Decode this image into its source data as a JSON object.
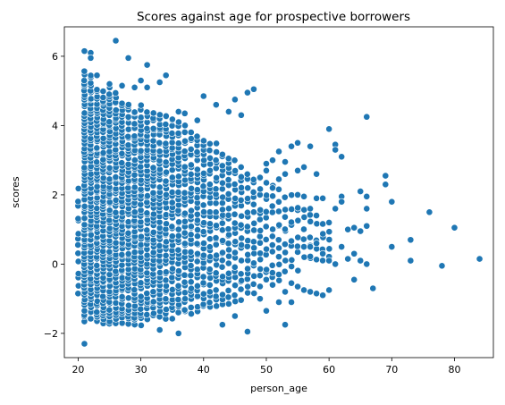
{
  "chart_data": {
    "type": "scatter",
    "title": "Scores against age for prospective borrowers",
    "xlabel": "person_age",
    "ylabel": "scores",
    "xlim": [
      17.8,
      86.2
    ],
    "ylim": [
      -2.7,
      6.85
    ],
    "xticks": [
      20,
      30,
      40,
      50,
      60,
      70,
      80
    ],
    "yticks": [
      -2,
      0,
      2,
      4,
      6
    ],
    "grid": false,
    "legend": "none",
    "color": "#1f77b4",
    "dense_band": {
      "description": "dense mass of points: per-age score range",
      "ages": [
        20,
        21,
        22,
        23,
        24,
        25,
        26,
        27,
        28,
        29,
        30,
        31,
        32,
        33,
        34,
        35,
        36,
        37,
        38,
        39,
        40,
        41,
        42,
        43,
        44,
        45,
        46,
        47,
        48,
        49,
        50,
        51,
        52,
        53,
        54,
        55,
        56,
        57,
        58,
        59,
        60
      ],
      "ymin": [
        -1.0,
        -1.7,
        -1.6,
        -1.7,
        -1.8,
        -1.8,
        -1.8,
        -1.75,
        -1.8,
        -1.8,
        -1.8,
        -1.6,
        -1.6,
        -1.6,
        -1.6,
        -1.6,
        -1.5,
        -1.5,
        -1.45,
        -1.4,
        -1.35,
        -1.3,
        -1.3,
        -1.25,
        -1.2,
        -1.1,
        -1.1,
        -1.0,
        -0.9,
        -0.8,
        -0.7,
        -0.6,
        -0.5,
        -0.4,
        -0.3,
        -0.2,
        -0.1,
        -0.1,
        0.0,
        0.0,
        0.1
      ],
      "ymax": [
        2.2,
        5.6,
        5.5,
        5.1,
        5.0,
        5.1,
        5.0,
        4.7,
        4.7,
        4.5,
        4.6,
        4.5,
        4.4,
        4.4,
        4.4,
        4.3,
        4.2,
        4.1,
        3.9,
        3.8,
        3.7,
        3.6,
        3.5,
        3.3,
        3.2,
        3.0,
        2.9,
        2.7,
        2.6,
        2.5,
        2.4,
        2.3,
        2.2,
        2.1,
        2.0,
        1.9,
        1.8,
        1.6,
        1.5,
        1.3,
        1.2
      ],
      "counts": [
        14,
        70,
        68,
        66,
        64,
        62,
        60,
        58,
        56,
        54,
        52,
        50,
        48,
        46,
        44,
        42,
        40,
        38,
        36,
        34,
        32,
        30,
        28,
        26,
        24,
        22,
        20,
        18,
        16,
        14,
        12,
        11,
        10,
        9,
        8,
        7,
        6,
        6,
        5,
        5,
        4
      ]
    },
    "points": [
      [
        21,
        6.15
      ],
      [
        22,
        6.1
      ],
      [
        26,
        6.45
      ],
      [
        28,
        5.95
      ],
      [
        31,
        5.75
      ],
      [
        34,
        5.45
      ],
      [
        22,
        5.95
      ],
      [
        23,
        5.45
      ],
      [
        25,
        5.2
      ],
      [
        27,
        5.15
      ],
      [
        29,
        5.1
      ],
      [
        30,
        5.3
      ],
      [
        33,
        5.25
      ],
      [
        31,
        5.1
      ],
      [
        40,
        4.85
      ],
      [
        42,
        4.6
      ],
      [
        45,
        4.75
      ],
      [
        47,
        4.95
      ],
      [
        48,
        5.05
      ],
      [
        44,
        4.4
      ],
      [
        46,
        4.3
      ],
      [
        36,
        4.4
      ],
      [
        37,
        4.35
      ],
      [
        39,
        4.15
      ],
      [
        21,
        -2.3
      ],
      [
        36,
        -2.0
      ],
      [
        47,
        -1.95
      ],
      [
        33,
        -1.9
      ],
      [
        43,
        -1.75
      ],
      [
        45,
        -1.5
      ],
      [
        50,
        -1.35
      ],
      [
        52,
        -1.1
      ],
      [
        53,
        -1.75
      ],
      [
        49,
        -1.0
      ],
      [
        54,
        -1.1
      ],
      [
        49,
        2.5
      ],
      [
        50,
        2.9
      ],
      [
        51,
        3.0
      ],
      [
        52,
        3.25
      ],
      [
        53,
        2.95
      ],
      [
        54,
        3.4
      ],
      [
        55,
        3.5
      ],
      [
        56,
        2.8
      ],
      [
        57,
        3.4
      ],
      [
        60,
        3.9
      ],
      [
        61,
        3.45
      ],
      [
        61,
        3.3
      ],
      [
        62,
        3.1
      ],
      [
        66,
        4.25
      ],
      [
        50,
        2.7
      ],
      [
        53,
        2.6
      ],
      [
        55,
        2.7
      ],
      [
        52,
        2.45
      ],
      [
        58,
        2.6
      ],
      [
        51,
        2.2
      ],
      [
        55,
        2.0
      ],
      [
        56,
        1.95
      ],
      [
        57,
        1.6
      ],
      [
        58,
        1.9
      ],
      [
        59,
        1.9
      ],
      [
        60,
        1.2
      ],
      [
        61,
        1.6
      ],
      [
        62,
        1.95
      ],
      [
        62,
        1.8
      ],
      [
        63,
        1.0
      ],
      [
        64,
        1.05
      ],
      [
        65,
        2.1
      ],
      [
        65,
        0.95
      ],
      [
        66,
        1.6
      ],
      [
        66,
        1.95
      ],
      [
        66,
        1.1
      ],
      [
        69,
        2.55
      ],
      [
        69,
        2.3
      ],
      [
        70,
        1.8
      ],
      [
        76,
        1.5
      ],
      [
        80,
        1.05
      ],
      [
        73,
        0.7
      ],
      [
        70,
        0.5
      ],
      [
        56,
        0.5
      ],
      [
        57,
        0.5
      ],
      [
        58,
        0.6
      ],
      [
        59,
        0.3
      ],
      [
        60,
        0.1
      ],
      [
        61,
        0.0
      ],
      [
        62,
        0.5
      ],
      [
        63,
        0.15
      ],
      [
        64,
        0.3
      ],
      [
        65,
        0.1
      ],
      [
        66,
        0.0
      ],
      [
        73,
        0.1
      ],
      [
        78,
        -0.05
      ],
      [
        84,
        0.15
      ],
      [
        64,
        -0.45
      ],
      [
        67,
        -0.7
      ],
      [
        55,
        -0.65
      ],
      [
        56,
        -0.75
      ],
      [
        57,
        -0.8
      ],
      [
        58,
        -0.85
      ],
      [
        59,
        -0.9
      ],
      [
        60,
        -0.75
      ],
      [
        53,
        -0.8
      ],
      [
        54,
        -0.55
      ],
      [
        52,
        -0.3
      ],
      [
        51,
        -0.6
      ]
    ]
  }
}
